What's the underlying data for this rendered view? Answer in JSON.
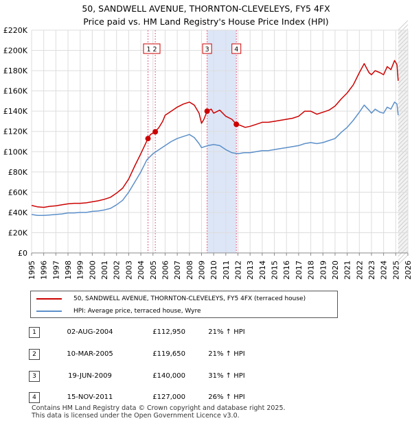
{
  "title": {
    "line1": "50, SANDWELL AVENUE, THORNTON-CLEVELEYS, FY5 4FX",
    "line2": "Price paid vs. HM Land Registry's House Price Index (HPI)"
  },
  "colors": {
    "property": "#cc0000",
    "hpi": "#5b8fc9",
    "shade": "#dde6f7",
    "marker_line": "#e06080",
    "grid": "#dddddd"
  },
  "chart_data": {
    "type": "line",
    "title": "Price paid vs. HM Land Registry's House Price Index (HPI)",
    "xlabel": "",
    "ylabel": "",
    "xlim": [
      1995,
      2026
    ],
    "ylim": [
      0,
      220000
    ],
    "y_ticks": [
      0,
      20000,
      40000,
      60000,
      80000,
      100000,
      120000,
      140000,
      160000,
      180000,
      200000,
      220000
    ],
    "y_tick_labels": [
      "£0",
      "£20K",
      "£40K",
      "£60K",
      "£80K",
      "£100K",
      "£120K",
      "£140K",
      "£160K",
      "£180K",
      "£200K",
      "£220K"
    ],
    "x_ticks": [
      1995,
      1996,
      1997,
      1998,
      1999,
      2000,
      2001,
      2002,
      2003,
      2004,
      2005,
      2006,
      2007,
      2008,
      2009,
      2010,
      2011,
      2012,
      2013,
      2014,
      2015,
      2016,
      2017,
      2018,
      2019,
      2020,
      2021,
      2022,
      2023,
      2024,
      2025,
      2026
    ],
    "x_tick_labels": [
      "1995",
      "1996",
      "1997",
      "1998",
      "1999",
      "2000",
      "2001",
      "2002",
      "2003",
      "2004",
      "2005",
      "2006",
      "2007",
      "2008",
      "2009",
      "2010",
      "2011",
      "2012",
      "2013",
      "2014",
      "2015",
      "2016",
      "2017",
      "2018",
      "2019",
      "2020",
      "2021",
      "2022",
      "2023",
      "2024",
      "2025",
      "2026"
    ],
    "grid": true,
    "shaded_range": [
      2009.46,
      2011.87
    ],
    "series": [
      {
        "name": "50, SANDWELL AVENUE, THORNTON-CLEVELEYS, FY5 4FX (terraced house)",
        "color": "#cc0000",
        "points": [
          [
            1995.0,
            47000
          ],
          [
            1995.5,
            45500
          ],
          [
            1996.0,
            45000
          ],
          [
            1996.5,
            46000
          ],
          [
            1997.0,
            46500
          ],
          [
            1997.5,
            47500
          ],
          [
            1998.0,
            48500
          ],
          [
            1998.5,
            49000
          ],
          [
            1999.0,
            49000
          ],
          [
            1999.5,
            49500
          ],
          [
            2000.0,
            50500
          ],
          [
            2000.5,
            51500
          ],
          [
            2001.0,
            53000
          ],
          [
            2001.5,
            55000
          ],
          [
            2002.0,
            59000
          ],
          [
            2002.5,
            64000
          ],
          [
            2003.0,
            73000
          ],
          [
            2003.5,
            86000
          ],
          [
            2004.0,
            98000
          ],
          [
            2004.59,
            112950
          ],
          [
            2004.8,
            117000
          ],
          [
            2005.19,
            119650
          ],
          [
            2005.5,
            124000
          ],
          [
            2005.8,
            130000
          ],
          [
            2006.0,
            136000
          ],
          [
            2006.5,
            140000
          ],
          [
            2007.0,
            144000
          ],
          [
            2007.5,
            147000
          ],
          [
            2008.0,
            149000
          ],
          [
            2008.4,
            146000
          ],
          [
            2008.8,
            138000
          ],
          [
            2009.0,
            128000
          ],
          [
            2009.2,
            132000
          ],
          [
            2009.46,
            140000
          ],
          [
            2009.8,
            142000
          ],
          [
            2010.0,
            138000
          ],
          [
            2010.5,
            141000
          ],
          [
            2011.0,
            135000
          ],
          [
            2011.5,
            132000
          ],
          [
            2011.87,
            127000
          ],
          [
            2012.2,
            126000
          ],
          [
            2012.6,
            124000
          ],
          [
            2013.0,
            125000
          ],
          [
            2013.5,
            127000
          ],
          [
            2014.0,
            129000
          ],
          [
            2014.5,
            129000
          ],
          [
            2015.0,
            130000
          ],
          [
            2015.5,
            131000
          ],
          [
            2016.0,
            132000
          ],
          [
            2016.5,
            133000
          ],
          [
            2017.0,
            135000
          ],
          [
            2017.5,
            140000
          ],
          [
            2018.0,
            140000
          ],
          [
            2018.5,
            137000
          ],
          [
            2019.0,
            139000
          ],
          [
            2019.5,
            141000
          ],
          [
            2020.0,
            145000
          ],
          [
            2020.5,
            152000
          ],
          [
            2021.0,
            158000
          ],
          [
            2021.5,
            166000
          ],
          [
            2022.0,
            178000
          ],
          [
            2022.4,
            187000
          ],
          [
            2022.8,
            178000
          ],
          [
            2023.0,
            176000
          ],
          [
            2023.3,
            180000
          ],
          [
            2023.7,
            178000
          ],
          [
            2024.0,
            176000
          ],
          [
            2024.3,
            184000
          ],
          [
            2024.6,
            181000
          ],
          [
            2024.9,
            190000
          ],
          [
            2025.1,
            186000
          ],
          [
            2025.2,
            170000
          ]
        ]
      },
      {
        "name": "HPI: Average price, terraced house, Wyre",
        "color": "#5b8fc9",
        "points": [
          [
            1995.0,
            38000
          ],
          [
            1995.5,
            37000
          ],
          [
            1996.0,
            37000
          ],
          [
            1996.5,
            37500
          ],
          [
            1997.0,
            38000
          ],
          [
            1997.5,
            38500
          ],
          [
            1998.0,
            39500
          ],
          [
            1998.5,
            39500
          ],
          [
            1999.0,
            40000
          ],
          [
            1999.5,
            40000
          ],
          [
            2000.0,
            41000
          ],
          [
            2000.5,
            41500
          ],
          [
            2001.0,
            42500
          ],
          [
            2001.5,
            44000
          ],
          [
            2002.0,
            47500
          ],
          [
            2002.5,
            52000
          ],
          [
            2003.0,
            60000
          ],
          [
            2003.5,
            70000
          ],
          [
            2004.0,
            80000
          ],
          [
            2004.5,
            92000
          ],
          [
            2005.0,
            98000
          ],
          [
            2005.5,
            102000
          ],
          [
            2006.0,
            106000
          ],
          [
            2006.5,
            110000
          ],
          [
            2007.0,
            113000
          ],
          [
            2007.5,
            115000
          ],
          [
            2008.0,
            117000
          ],
          [
            2008.4,
            114000
          ],
          [
            2008.8,
            108000
          ],
          [
            2009.0,
            104000
          ],
          [
            2009.5,
            106000
          ],
          [
            2010.0,
            107000
          ],
          [
            2010.5,
            106000
          ],
          [
            2011.0,
            102000
          ],
          [
            2011.5,
            99000
          ],
          [
            2012.0,
            98000
          ],
          [
            2012.5,
            99000
          ],
          [
            2013.0,
            99000
          ],
          [
            2013.5,
            100000
          ],
          [
            2014.0,
            101000
          ],
          [
            2014.5,
            101000
          ],
          [
            2015.0,
            102000
          ],
          [
            2015.5,
            103000
          ],
          [
            2016.0,
            104000
          ],
          [
            2016.5,
            105000
          ],
          [
            2017.0,
            106000
          ],
          [
            2017.5,
            108000
          ],
          [
            2018.0,
            109000
          ],
          [
            2018.5,
            108000
          ],
          [
            2019.0,
            109000
          ],
          [
            2019.5,
            111000
          ],
          [
            2020.0,
            113000
          ],
          [
            2020.5,
            119000
          ],
          [
            2021.0,
            124000
          ],
          [
            2021.5,
            131000
          ],
          [
            2022.0,
            139000
          ],
          [
            2022.4,
            146000
          ],
          [
            2022.8,
            141000
          ],
          [
            2023.0,
            138000
          ],
          [
            2023.3,
            142000
          ],
          [
            2023.7,
            139000
          ],
          [
            2024.0,
            138000
          ],
          [
            2024.3,
            144000
          ],
          [
            2024.6,
            142000
          ],
          [
            2024.9,
            149000
          ],
          [
            2025.1,
            147000
          ],
          [
            2025.2,
            136000
          ]
        ]
      }
    ],
    "sales": [
      {
        "id": "1",
        "x": 2004.59,
        "price": 112950
      },
      {
        "id": "2",
        "x": 2005.19,
        "price": 119650
      },
      {
        "id": "3",
        "x": 2009.46,
        "price": 140000
      },
      {
        "id": "4",
        "x": 2011.87,
        "price": 127000
      }
    ],
    "sale_label_groups": [
      {
        "label": "1 2",
        "x": 2004.9
      },
      {
        "label": "3",
        "x": 2009.46
      },
      {
        "label": "4",
        "x": 2011.87
      }
    ],
    "projection_from": 2025.2
  },
  "legend": {
    "property_label": "50, SANDWELL AVENUE, THORNTON-CLEVELEYS, FY5 4FX (terraced house)",
    "hpi_label": "HPI: Average price, terraced house, Wyre"
  },
  "transactions": [
    {
      "id": "1",
      "date": "02-AUG-2004",
      "price": "£112,950",
      "hpi": "21% ↑ HPI"
    },
    {
      "id": "2",
      "date": "10-MAR-2005",
      "price": "£119,650",
      "hpi": "21% ↑ HPI"
    },
    {
      "id": "3",
      "date": "19-JUN-2009",
      "price": "£140,000",
      "hpi": "31% ↑ HPI"
    },
    {
      "id": "4",
      "date": "15-NOV-2011",
      "price": "£127,000",
      "hpi": "26% ↑ HPI"
    }
  ],
  "footer": {
    "line1": "Contains HM Land Registry data © Crown copyright and database right 2025.",
    "line2": "This data is licensed under the Open Government Licence v3.0."
  }
}
